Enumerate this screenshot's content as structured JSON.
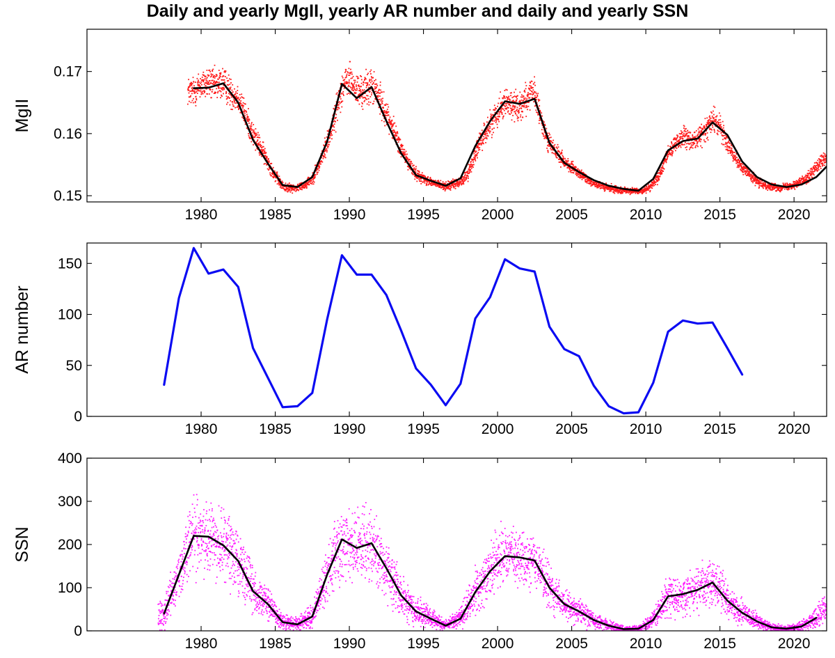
{
  "figure": {
    "title": "Daily and yearly MgII, yearly AR number and daily and yearly SSN"
  },
  "colors": {
    "mgii_daily": "#ff1a1a",
    "yearly_line": "#000000",
    "ar_line": "#0b0bf2",
    "ssn_daily": "#ff1aff"
  },
  "chart_data": [
    {
      "type": "line",
      "ylabel": "MgII",
      "xlabel": "",
      "xlim": [
        1972.3,
        2022.2
      ],
      "ylim": [
        0.149,
        0.1768
      ],
      "xticks": [
        1980,
        1985,
        1990,
        1995,
        2000,
        2005,
        2010,
        2015,
        2020
      ],
      "yticks": [
        0.15,
        0.16,
        0.17
      ],
      "ytick_labels": [
        "0.15",
        "0.16",
        "0.17"
      ],
      "grid": false,
      "series": [
        {
          "name": "",
          "style": "daily-dots",
          "color_key": "mgii_daily",
          "x": [
            1979.5,
            1980.0,
            1980.5,
            1981.0,
            1981.5,
            1982.0,
            1982.5,
            1983.0,
            1983.5,
            1984.0,
            1984.5,
            1985.0,
            1985.5,
            1986.0,
            1986.5,
            1987.0,
            1987.5,
            1988.0,
            1988.5,
            1989.0,
            1989.5,
            1990.0,
            1990.5,
            1991.0,
            1991.5,
            1992.0,
            1992.5,
            1993.0,
            1993.5,
            1994.0,
            1994.5,
            1995.0,
            1995.5,
            1996.0,
            1996.5,
            1997.0,
            1997.5,
            1998.0,
            1998.5,
            1999.0,
            1999.5,
            2000.0,
            2000.5,
            2001.0,
            2001.5,
            2002.0,
            2002.5,
            2003.0,
            2003.5,
            2004.0,
            2004.5,
            2005.0,
            2005.5,
            2006.0,
            2006.5,
            2007.0,
            2007.5,
            2008.0,
            2008.5,
            2009.0,
            2009.5,
            2010.0,
            2010.5,
            2011.0,
            2011.5,
            2012.0,
            2012.5,
            2013.0,
            2013.5,
            2014.0,
            2014.5,
            2015.0,
            2015.5,
            2016.0,
            2016.5,
            2017.0,
            2017.5,
            2018.0,
            2018.5,
            2019.0,
            2019.5,
            2020.0,
            2020.5,
            2021.0,
            2021.5,
            2022.0
          ],
          "y": [
            0.1668,
            0.1678,
            0.1682,
            0.1678,
            0.1682,
            0.1665,
            0.1658,
            0.1628,
            0.1598,
            0.1578,
            0.1555,
            0.1532,
            0.1515,
            0.1512,
            0.1513,
            0.1518,
            0.1528,
            0.1552,
            0.1585,
            0.1625,
            0.1675,
            0.1688,
            0.1668,
            0.1668,
            0.1678,
            0.1658,
            0.1632,
            0.1605,
            0.1575,
            0.1552,
            0.1535,
            0.1528,
            0.1522,
            0.1518,
            0.1515,
            0.1518,
            0.1522,
            0.1535,
            0.1568,
            0.1595,
            0.1615,
            0.1635,
            0.1652,
            0.1645,
            0.1645,
            0.1658,
            0.1665,
            0.1615,
            0.1585,
            0.1568,
            0.1555,
            0.1545,
            0.1535,
            0.1528,
            0.152,
            0.1515,
            0.1512,
            0.151,
            0.1509,
            0.1508,
            0.1507,
            0.151,
            0.152,
            0.1535,
            0.1568,
            0.1585,
            0.1595,
            0.1588,
            0.1592,
            0.1605,
            0.1622,
            0.1612,
            0.1585,
            0.1565,
            0.1545,
            0.1535,
            0.1522,
            0.1517,
            0.1514,
            0.1513,
            0.1515,
            0.1518,
            0.1523,
            0.1532,
            0.1545,
            0.1558
          ],
          "spread": [
            0.0028,
            0.003,
            0.0032,
            0.003,
            0.0032,
            0.003,
            0.0028,
            0.0026,
            0.0023,
            0.002,
            0.0016,
            0.0012,
            0.0009,
            0.0008,
            0.0008,
            0.0009,
            0.0012,
            0.0016,
            0.0022,
            0.0028,
            0.0032,
            0.0032,
            0.0032,
            0.0034,
            0.0034,
            0.003,
            0.0026,
            0.0022,
            0.0018,
            0.0015,
            0.0012,
            0.001,
            0.0009,
            0.0008,
            0.0008,
            0.0009,
            0.001,
            0.0013,
            0.0018,
            0.0022,
            0.0025,
            0.0027,
            0.0028,
            0.0028,
            0.003,
            0.003,
            0.0028,
            0.0024,
            0.002,
            0.0017,
            0.0014,
            0.0012,
            0.001,
            0.0009,
            0.0008,
            0.0008,
            0.0007,
            0.0007,
            0.0006,
            0.0006,
            0.0006,
            0.0007,
            0.0009,
            0.0012,
            0.0016,
            0.0019,
            0.002,
            0.0019,
            0.002,
            0.0022,
            0.0024,
            0.0022,
            0.0018,
            0.0015,
            0.0012,
            0.001,
            0.0009,
            0.0008,
            0.0007,
            0.0007,
            0.0007,
            0.0008,
            0.0009,
            0.0011,
            0.0014,
            0.0016
          ]
        },
        {
          "name": "",
          "style": "yearly-line",
          "color_key": "yearly_line",
          "x": [
            1979.5,
            1980.5,
            1981.5,
            1982.5,
            1983.5,
            1984.5,
            1985.5,
            1986.5,
            1987.5,
            1988.5,
            1989.5,
            1990.5,
            1991.5,
            1992.5,
            1993.5,
            1994.5,
            1995.5,
            1996.5,
            1997.5,
            1998.5,
            1999.5,
            2000.5,
            2001.5,
            2002.5,
            2003.5,
            2004.5,
            2005.5,
            2006.5,
            2007.5,
            2008.5,
            2009.5,
            2010.5,
            2011.5,
            2012.5,
            2013.5,
            2014.5,
            2015.5,
            2016.5,
            2017.5,
            2018.5,
            2019.5,
            2020.5,
            2021.5,
            2022.2
          ],
          "y": [
            0.1673,
            0.1674,
            0.1681,
            0.165,
            0.159,
            0.1552,
            0.1517,
            0.1514,
            0.153,
            0.1587,
            0.168,
            0.1657,
            0.1675,
            0.162,
            0.1568,
            0.1533,
            0.1524,
            0.1516,
            0.1528,
            0.158,
            0.162,
            0.1652,
            0.1648,
            0.1656,
            0.1585,
            0.1553,
            0.1538,
            0.1525,
            0.1516,
            0.1511,
            0.1508,
            0.1527,
            0.1573,
            0.1588,
            0.1592,
            0.1618,
            0.1598,
            0.1555,
            0.153,
            0.1518,
            0.1514,
            0.1518,
            0.153,
            0.1547
          ]
        }
      ]
    },
    {
      "type": "line",
      "ylabel": "AR number",
      "xlabel": "",
      "xlim": [
        1972.3,
        2022.2
      ],
      "ylim": [
        0,
        170
      ],
      "xticks": [
        1980,
        1985,
        1990,
        1995,
        2000,
        2005,
        2010,
        2015,
        2020
      ],
      "yticks": [
        0,
        50,
        100,
        150
      ],
      "ytick_labels": [
        "0",
        "50",
        "100",
        "150"
      ],
      "grid": false,
      "series": [
        {
          "name": "",
          "style": "yearly-line",
          "color_key": "ar_line",
          "x": [
            1977.5,
            1978.5,
            1979.5,
            1980.5,
            1981.5,
            1982.5,
            1983.5,
            1984.5,
            1985.5,
            1986.5,
            1987.5,
            1988.5,
            1989.5,
            1990.5,
            1991.5,
            1992.5,
            1993.5,
            1994.5,
            1995.5,
            1996.5,
            1997.5,
            1998.5,
            1999.5,
            2000.5,
            2001.5,
            2002.5,
            2003.5,
            2004.5,
            2005.5,
            2006.5,
            2007.5,
            2008.5,
            2009.5,
            2010.5,
            2011.5,
            2012.5,
            2013.5,
            2014.5,
            2015.5,
            2016.5
          ],
          "y": [
            31,
            116,
            165,
            140,
            144,
            127,
            67,
            38,
            9,
            10,
            23,
            95,
            158,
            139,
            139,
            119,
            84,
            47,
            31,
            11,
            32,
            96,
            117,
            154,
            145,
            142,
            88,
            66,
            59,
            30,
            10,
            3,
            4,
            33,
            83,
            94,
            91,
            92,
            67,
            41
          ]
        }
      ]
    },
    {
      "type": "line",
      "ylabel": "SSN",
      "xlabel": "",
      "xlim": [
        1972.3,
        2022.2
      ],
      "ylim": [
        0,
        400
      ],
      "xticks": [
        1980,
        1985,
        1990,
        1995,
        2000,
        2005,
        2010,
        2015,
        2020
      ],
      "yticks": [
        0,
        100,
        200,
        300,
        400
      ],
      "ytick_labels": [
        "0",
        "100",
        "200",
        "300",
        "400"
      ],
      "grid": false,
      "series": [
        {
          "name": "",
          "style": "daily-dots",
          "color_key": "ssn_daily",
          "x": [
            1977.5,
            1978.5,
            1979.5,
            1980.5,
            1981.5,
            1982.5,
            1983.5,
            1984.5,
            1985.5,
            1986.5,
            1987.5,
            1988.5,
            1989.5,
            1990.5,
            1991.5,
            1992.5,
            1993.5,
            1994.5,
            1995.5,
            1996.5,
            1997.5,
            1998.5,
            1999.5,
            2000.5,
            2001.5,
            2002.5,
            2003.5,
            2004.5,
            2005.5,
            2006.5,
            2007.5,
            2008.5,
            2009.5,
            2010.5,
            2011.5,
            2012.5,
            2013.5,
            2014.5,
            2015.5,
            2016.5,
            2017.5,
            2018.5,
            2019.5,
            2020.5,
            2021.5,
            2022.2
          ],
          "y": [
            40,
            130,
            220,
            218,
            200,
            165,
            95,
            62,
            20,
            15,
            33,
            130,
            212,
            190,
            202,
            140,
            80,
            45,
            28,
            12,
            30,
            90,
            140,
            175,
            170,
            165,
            100,
            60,
            45,
            25,
            12,
            4,
            5,
            25,
            80,
            85,
            95,
            112,
            70,
            42,
            22,
            8,
            5,
            10,
            30,
            55
          ],
          "spread": [
            40,
            75,
            100,
            100,
            95,
            85,
            60,
            45,
            20,
            18,
            30,
            75,
            100,
            95,
            100,
            80,
            55,
            40,
            28,
            15,
            30,
            60,
            75,
            85,
            85,
            80,
            60,
            45,
            35,
            25,
            15,
            8,
            8,
            25,
            55,
            55,
            60,
            65,
            50,
            35,
            22,
            12,
            10,
            15,
            30,
            45
          ]
        },
        {
          "name": "",
          "style": "yearly-line",
          "color_key": "yearly_line",
          "x": [
            1977.5,
            1978.5,
            1979.5,
            1980.5,
            1981.5,
            1982.5,
            1983.5,
            1984.5,
            1985.5,
            1986.5,
            1987.5,
            1988.5,
            1989.5,
            1990.5,
            1991.5,
            1992.5,
            1993.5,
            1994.5,
            1995.5,
            1996.5,
            1997.5,
            1998.5,
            1999.5,
            2000.5,
            2001.5,
            2002.5,
            2003.5,
            2004.5,
            2005.5,
            2006.5,
            2007.5,
            2008.5,
            2009.5,
            2010.5,
            2011.5,
            2012.5,
            2013.5,
            2014.5,
            2015.5,
            2016.5,
            2017.5,
            2018.5,
            2019.5,
            2020.5,
            2021.5
          ],
          "y": [
            40,
            130,
            220,
            218,
            198,
            162,
            92,
            62,
            20,
            15,
            33,
            130,
            212,
            192,
            203,
            145,
            82,
            45,
            28,
            12,
            28,
            90,
            138,
            173,
            170,
            163,
            100,
            62,
            45,
            25,
            12,
            4,
            5,
            25,
            80,
            85,
            95,
            112,
            70,
            42,
            22,
            8,
            5,
            10,
            30
          ]
        }
      ]
    }
  ]
}
